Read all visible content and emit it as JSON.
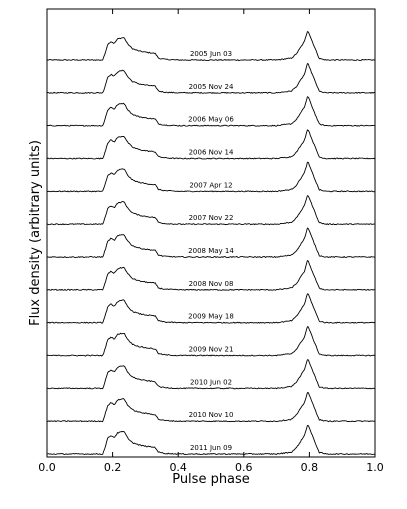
{
  "chart_data": {
    "type": "line",
    "title": "",
    "xlabel": "Pulse phase",
    "ylabel": "Flux density (arbitrary units)",
    "xlim": [
      0.0,
      1.0
    ],
    "xticks": [
      "0.0",
      "0.2",
      "0.4",
      "0.6",
      "0.8",
      "1.0"
    ],
    "y_ticks_labeled": false,
    "grid": false,
    "legend": "none",
    "stacked_offset_profiles": true,
    "profile_shape_phase_points": [
      [
        0.0,
        0.0
      ],
      [
        0.17,
        0.0
      ],
      [
        0.175,
        0.15
      ],
      [
        0.185,
        0.52
      ],
      [
        0.195,
        0.62
      ],
      [
        0.205,
        0.55
      ],
      [
        0.215,
        0.7
      ],
      [
        0.225,
        0.73
      ],
      [
        0.235,
        0.75
      ],
      [
        0.245,
        0.55
      ],
      [
        0.26,
        0.38
      ],
      [
        0.28,
        0.3
      ],
      [
        0.3,
        0.26
      ],
      [
        0.33,
        0.22
      ],
      [
        0.34,
        0.06
      ],
      [
        0.36,
        0.02
      ],
      [
        0.4,
        0.0
      ],
      [
        0.7,
        0.0
      ],
      [
        0.745,
        0.06
      ],
      [
        0.76,
        0.2
      ],
      [
        0.775,
        0.45
      ],
      [
        0.785,
        0.62
      ],
      [
        0.795,
        1.0
      ],
      [
        0.805,
        0.72
      ],
      [
        0.815,
        0.45
      ],
      [
        0.83,
        0.05
      ],
      [
        0.85,
        0.0
      ],
      [
        1.0,
        0.0
      ]
    ],
    "series": [
      {
        "name": "2005 Jun 03"
      },
      {
        "name": "2005 Nov 24"
      },
      {
        "name": "2006 May 06"
      },
      {
        "name": "2006 Nov 14"
      },
      {
        "name": "2007 Apr 12"
      },
      {
        "name": "2007 Nov 22"
      },
      {
        "name": "2008 May 14"
      },
      {
        "name": "2008 Nov 08"
      },
      {
        "name": "2009 May 18"
      },
      {
        "name": "2009 Nov 21"
      },
      {
        "name": "2010 Jun 02"
      },
      {
        "name": "2010 Nov 10"
      },
      {
        "name": "2011 Jun 09"
      }
    ]
  },
  "colors": {
    "line": "#000000",
    "background": "#ffffff"
  }
}
